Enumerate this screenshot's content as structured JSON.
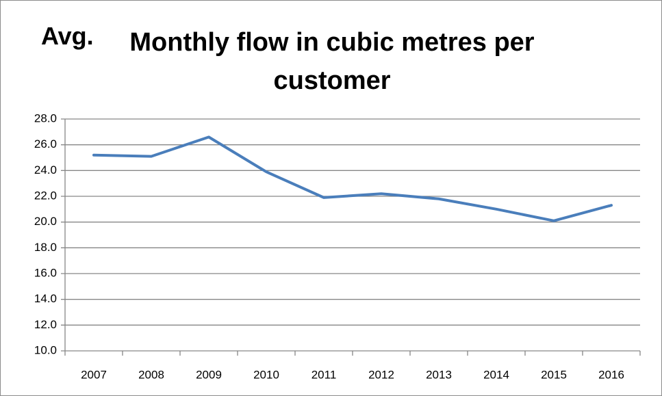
{
  "chart_data": {
    "type": "line",
    "annotation": "Avg.",
    "title": "Monthly flow in cubic metres per customer",
    "categories": [
      "2007",
      "2008",
      "2009",
      "2010",
      "2011",
      "2012",
      "2013",
      "2014",
      "2015",
      "2016"
    ],
    "series": [
      {
        "name": "Avg. monthly flow",
        "color": "#4a7ebb",
        "values": [
          25.2,
          25.1,
          26.6,
          23.9,
          21.9,
          22.2,
          21.8,
          21.0,
          20.1,
          21.3
        ]
      }
    ],
    "ylim": [
      10,
      28
    ],
    "yticks": [
      {
        "value": 10,
        "label": "10.0"
      },
      {
        "value": 12,
        "label": "12.0"
      },
      {
        "value": 14,
        "label": "14.0"
      },
      {
        "value": 16,
        "label": "16.0"
      },
      {
        "value": 18,
        "label": "18.0"
      },
      {
        "value": 20,
        "label": "20.0"
      },
      {
        "value": 22,
        "label": "22.0"
      },
      {
        "value": 24,
        "label": "24.0"
      },
      {
        "value": 26,
        "label": "26.0"
      },
      {
        "value": 28,
        "label": "28.0"
      }
    ],
    "grid": true
  }
}
